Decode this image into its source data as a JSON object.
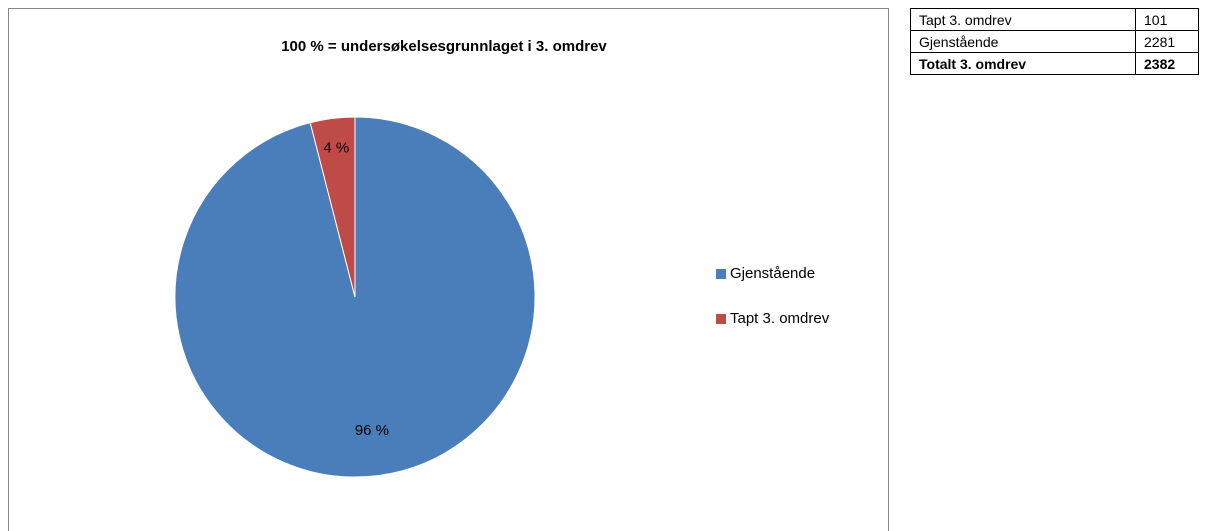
{
  "chart_data": {
    "type": "pie",
    "title": "100 % = undersøkelsesgrunnlaget i 3. omdrev",
    "categories": [
      "Gjenstående",
      "Tapt 3. omdrev"
    ],
    "values": [
      96,
      4
    ],
    "value_labels": [
      "96 %",
      "4 %"
    ],
    "colors": [
      "#4a7ebb",
      "#be4b48"
    ],
    "legend": "right"
  },
  "table": {
    "rows": [
      [
        "Tapt 3. omdrev",
        "101"
      ],
      [
        "Gjenstående",
        "2281"
      ],
      [
        "Totalt 3. omdrev",
        "2382"
      ]
    ]
  }
}
